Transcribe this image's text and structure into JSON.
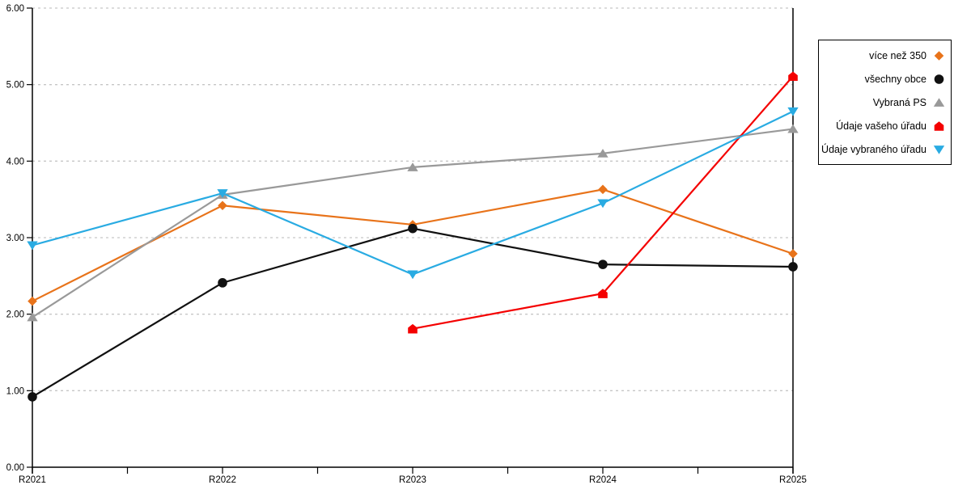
{
  "chart_data": {
    "type": "line",
    "title": "",
    "xlabel": "",
    "ylabel": "",
    "categories": [
      "R2021",
      "R2022",
      "R2023",
      "R2024",
      "R2025"
    ],
    "series": [
      {
        "name": "více než 350",
        "color": "#E8731A",
        "marker": "diamond",
        "values": [
          2.17,
          3.42,
          3.17,
          3.63,
          2.79
        ]
      },
      {
        "name": "všechny obce",
        "color": "#111111",
        "marker": "circle",
        "values": [
          0.92,
          2.41,
          3.12,
          2.65,
          2.62
        ]
      },
      {
        "name": "Vybraná PS",
        "color": "#999999",
        "marker": "triangle-up",
        "values": [
          1.96,
          3.56,
          3.92,
          4.1,
          4.42
        ]
      },
      {
        "name": "Údaje vašeho úřadu",
        "color": "#F40000",
        "marker": "pentagon",
        "values": [
          null,
          null,
          1.81,
          2.27,
          5.11
        ]
      },
      {
        "name": "Údaje vybraného úřadu",
        "color": "#29ABE2",
        "marker": "triangle-down",
        "values": [
          2.9,
          3.58,
          2.52,
          3.45,
          4.65
        ]
      }
    ],
    "ylim": [
      0,
      6
    ],
    "y_tick_labels": [
      "0.00",
      "1.00",
      "2.00",
      "3.00",
      "4.00",
      "5.00",
      "6.00"
    ],
    "grid": "horizontal-dashed",
    "x_minor_ticks": "midpoints",
    "legend_position": "outside-right-top"
  },
  "colors": {
    "axis": "#000000",
    "gridline": "#C6C6C6",
    "background": "#FFFFFF",
    "legend_border": "#000000"
  }
}
